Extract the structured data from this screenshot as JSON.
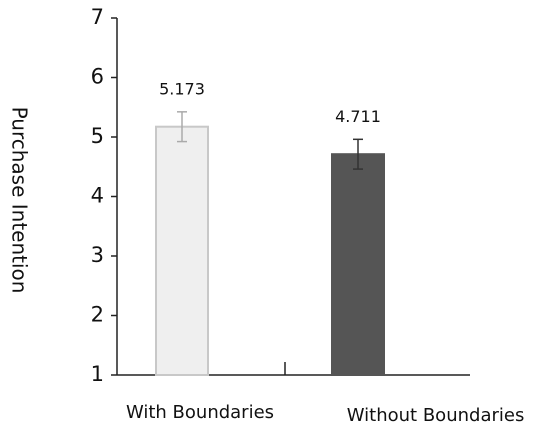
{
  "chart_data": {
    "type": "bar",
    "y_label": "Purchase Intention",
    "categories": [
      "With Boundaries",
      "Without Boundaries"
    ],
    "values": [
      5.173,
      4.711
    ],
    "errors": [
      0.25,
      0.25
    ],
    "colors": [
      "#efefef",
      "#555555"
    ],
    "edge_colors": [
      "#c8c8c8",
      "#555555"
    ],
    "ylim": [
      1,
      7
    ],
    "yticks": [
      1,
      2,
      3,
      4,
      5,
      6,
      7
    ]
  }
}
